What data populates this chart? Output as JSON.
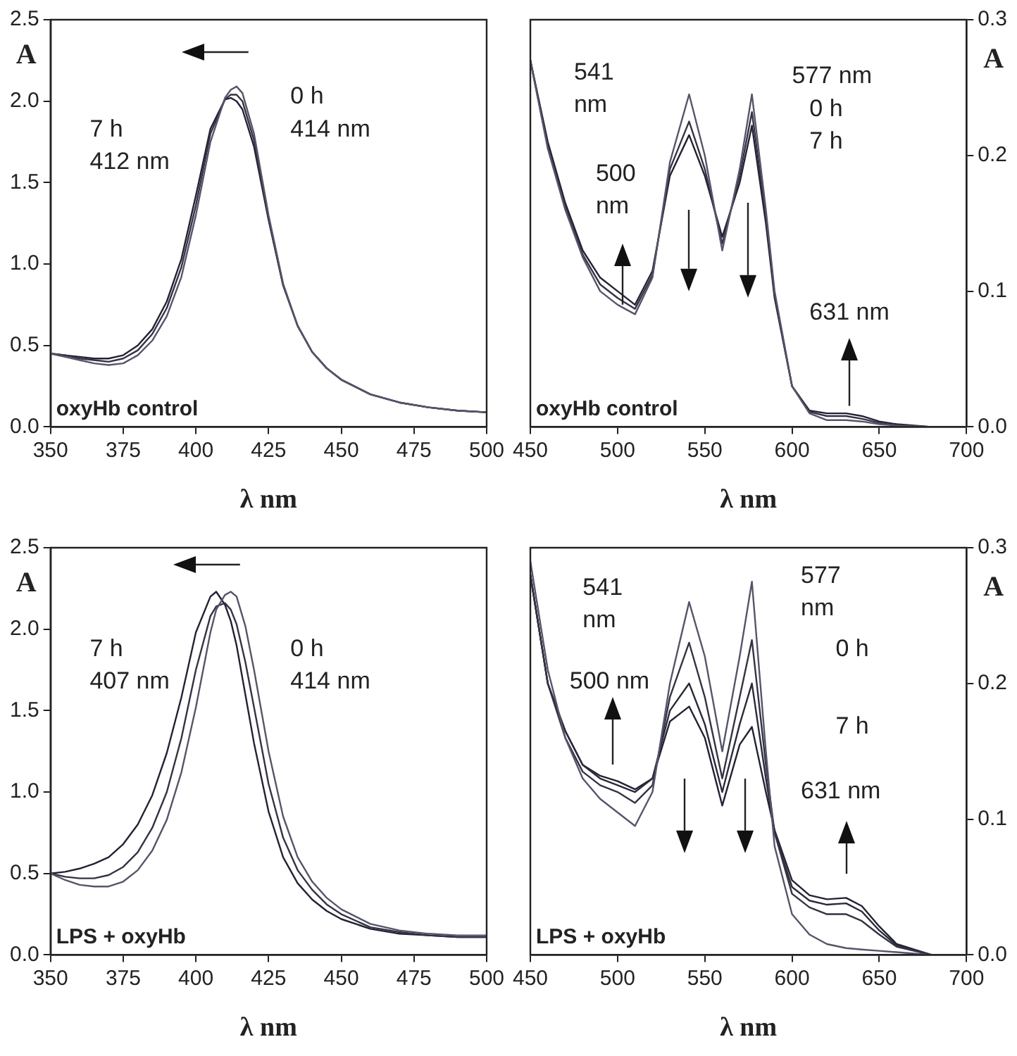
{
  "chart_data": [
    {
      "type": "line",
      "xlabel": "λ nm",
      "ylabel": "A",
      "xlim": [
        350,
        500
      ],
      "xticks": [
        350,
        375,
        400,
        425,
        450,
        475,
        500
      ],
      "ylim": [
        0,
        2.5
      ],
      "yticks": [
        {
          "value": 0,
          "label": "0.0"
        },
        0.5,
        {
          "value": 1,
          "label": "1.0"
        },
        1.5,
        {
          "value": 2,
          "label": "2.0"
        },
        2.5
      ],
      "x": [
        350,
        355,
        360,
        365,
        370,
        375,
        380,
        385,
        390,
        395,
        400,
        405,
        410,
        412,
        414,
        416,
        420,
        425,
        430,
        435,
        440,
        445,
        450,
        460,
        470,
        480,
        490,
        500
      ],
      "series": [
        {
          "color": "#55556a",
          "values": [
            0.45,
            0.43,
            0.41,
            0.39,
            0.38,
            0.39,
            0.44,
            0.53,
            0.68,
            0.92,
            1.3,
            1.75,
            2.02,
            2.07,
            2.09,
            2.05,
            1.8,
            1.3,
            0.88,
            0.62,
            0.46,
            0.36,
            0.29,
            0.2,
            0.15,
            0.12,
            0.1,
            0.09
          ]
        },
        {
          "color": "#333344",
          "values": [
            0.45,
            0.44,
            0.42,
            0.41,
            0.4,
            0.42,
            0.47,
            0.57,
            0.73,
            0.98,
            1.36,
            1.8,
            2.01,
            2.04,
            2.04,
            2.0,
            1.76,
            1.28,
            0.87,
            0.62,
            0.46,
            0.36,
            0.29,
            0.2,
            0.15,
            0.12,
            0.1,
            0.09
          ]
        },
        {
          "color": "#222233",
          "values": [
            0.45,
            0.44,
            0.43,
            0.42,
            0.42,
            0.44,
            0.5,
            0.6,
            0.77,
            1.03,
            1.42,
            1.83,
            2.01,
            2.02,
            2.0,
            1.95,
            1.72,
            1.27,
            0.87,
            0.62,
            0.46,
            0.36,
            0.29,
            0.2,
            0.15,
            0.12,
            0.1,
            0.09
          ]
        }
      ],
      "annotations": [
        "oxyHb control",
        "0 h",
        "414 nm",
        "7 h",
        "412 nm"
      ]
    },
    {
      "type": "line",
      "xlabel": "λ nm",
      "y2label": "A",
      "xlim": [
        450,
        700
      ],
      "xticks": [
        450,
        500,
        550,
        600,
        650,
        700
      ],
      "y2lim": [
        0,
        0.3
      ],
      "y2ticks": [
        {
          "value": 0,
          "label": "0.0"
        },
        0.1,
        0.2,
        0.3
      ],
      "x": [
        450,
        460,
        470,
        480,
        490,
        500,
        510,
        520,
        530,
        541,
        550,
        560,
        570,
        577,
        585,
        590,
        600,
        610,
        620,
        631,
        640,
        650,
        660,
        680,
        700
      ],
      "series": [
        {
          "axis": "y2",
          "color": "#55556a",
          "values": [
            0.27,
            0.205,
            0.16,
            0.125,
            0.1,
            0.09,
            0.083,
            0.11,
            0.195,
            0.245,
            0.2,
            0.13,
            0.19,
            0.245,
            0.16,
            0.1,
            0.03,
            0.01,
            0.005,
            0.005,
            0.004,
            0.002,
            0.001,
            0,
            0
          ]
        },
        {
          "axis": "y2",
          "color": "#333344",
          "values": [
            0.27,
            0.207,
            0.162,
            0.127,
            0.105,
            0.095,
            0.087,
            0.112,
            0.19,
            0.225,
            0.19,
            0.135,
            0.185,
            0.232,
            0.155,
            0.097,
            0.03,
            0.011,
            0.008,
            0.008,
            0.006,
            0.003,
            0.001,
            0,
            0
          ]
        },
        {
          "axis": "y2",
          "color": "#222233",
          "values": [
            0.27,
            0.21,
            0.165,
            0.13,
            0.11,
            0.1,
            0.09,
            0.115,
            0.185,
            0.215,
            0.185,
            0.14,
            0.18,
            0.222,
            0.15,
            0.095,
            0.03,
            0.012,
            0.01,
            0.01,
            0.008,
            0.004,
            0.002,
            0,
            0
          ]
        }
      ],
      "annotations": [
        "oxyHb control",
        "541",
        "nm",
        "577 nm",
        "0 h",
        "7 h",
        "500",
        "nm",
        "631 nm"
      ]
    },
    {
      "type": "line",
      "xlabel": "λ nm",
      "ylabel": "A",
      "xlim": [
        350,
        500
      ],
      "xticks": [
        350,
        375,
        400,
        425,
        450,
        475,
        500
      ],
      "ylim": [
        0,
        2.5
      ],
      "yticks": [
        {
          "value": 0,
          "label": "0.0"
        },
        0.5,
        {
          "value": 1,
          "label": "1.0"
        },
        1.5,
        {
          "value": 2,
          "label": "2.0"
        },
        2.5
      ],
      "x": [
        350,
        355,
        360,
        365,
        370,
        375,
        380,
        385,
        390,
        395,
        400,
        405,
        407,
        410,
        412,
        414,
        417,
        420,
        425,
        430,
        435,
        440,
        445,
        450,
        460,
        470,
        480,
        490,
        500
      ],
      "series": [
        {
          "color": "#55556a",
          "values": [
            0.5,
            0.46,
            0.43,
            0.42,
            0.42,
            0.45,
            0.52,
            0.64,
            0.83,
            1.12,
            1.52,
            1.98,
            2.12,
            2.21,
            2.23,
            2.2,
            2.02,
            1.75,
            1.25,
            0.85,
            0.6,
            0.45,
            0.35,
            0.28,
            0.19,
            0.15,
            0.13,
            0.12,
            0.12
          ]
        },
        {
          "color": "#333344",
          "values": [
            0.5,
            0.48,
            0.47,
            0.47,
            0.49,
            0.54,
            0.63,
            0.78,
            1.0,
            1.33,
            1.75,
            2.08,
            2.14,
            2.16,
            2.12,
            2.03,
            1.8,
            1.52,
            1.05,
            0.72,
            0.52,
            0.4,
            0.31,
            0.25,
            0.17,
            0.14,
            0.12,
            0.11,
            0.11
          ]
        },
        {
          "color": "#222233",
          "values": [
            0.5,
            0.51,
            0.53,
            0.56,
            0.6,
            0.68,
            0.8,
            0.98,
            1.24,
            1.58,
            1.98,
            2.2,
            2.23,
            2.15,
            2.05,
            1.9,
            1.6,
            1.3,
            0.88,
            0.6,
            0.44,
            0.34,
            0.27,
            0.22,
            0.16,
            0.13,
            0.12,
            0.11,
            0.11
          ]
        }
      ],
      "annotations": [
        "LPS + oxyHb",
        "7 h",
        "407 nm",
        "0 h",
        "414 nm"
      ]
    },
    {
      "type": "line",
      "xlabel": "λ nm",
      "y2label": "A",
      "xlim": [
        450,
        700
      ],
      "xticks": [
        450,
        500,
        550,
        600,
        650,
        700
      ],
      "y2lim": [
        0,
        0.3
      ],
      "y2ticks": [
        {
          "value": 0,
          "label": "0.0"
        },
        0.1,
        0.2,
        0.3
      ],
      "x": [
        450,
        460,
        470,
        480,
        490,
        500,
        510,
        520,
        530,
        541,
        550,
        560,
        570,
        577,
        585,
        590,
        600,
        610,
        620,
        631,
        640,
        650,
        660,
        680,
        700
      ],
      "series": [
        {
          "axis": "y2",
          "color": "#55556a",
          "values": [
            0.29,
            0.21,
            0.16,
            0.13,
            0.115,
            0.105,
            0.095,
            0.12,
            0.2,
            0.26,
            0.22,
            0.15,
            0.22,
            0.275,
            0.15,
            0.08,
            0.03,
            0.015,
            0.008,
            0.005,
            0.004,
            0.003,
            0.002,
            0,
            0
          ]
        },
        {
          "axis": "y2",
          "color": "#333344",
          "values": [
            0.28,
            0.2,
            0.16,
            0.135,
            0.125,
            0.12,
            0.112,
            0.125,
            0.19,
            0.23,
            0.19,
            0.13,
            0.19,
            0.232,
            0.14,
            0.09,
            0.045,
            0.035,
            0.03,
            0.03,
            0.025,
            0.015,
            0.006,
            0,
            0
          ]
        },
        {
          "axis": "y2",
          "color": "#2a2a3a",
          "values": [
            0.28,
            0.2,
            0.165,
            0.14,
            0.13,
            0.125,
            0.12,
            0.13,
            0.18,
            0.2,
            0.17,
            0.12,
            0.17,
            0.2,
            0.13,
            0.09,
            0.05,
            0.04,
            0.037,
            0.038,
            0.032,
            0.018,
            0.007,
            0,
            0
          ]
        },
        {
          "axis": "y2",
          "color": "#222233",
          "values": [
            0.28,
            0.2,
            0.165,
            0.14,
            0.132,
            0.128,
            0.122,
            0.13,
            0.172,
            0.183,
            0.16,
            0.11,
            0.155,
            0.168,
            0.12,
            0.092,
            0.055,
            0.044,
            0.041,
            0.042,
            0.036,
            0.021,
            0.008,
            0,
            0
          ]
        }
      ],
      "annotations": [
        "LPS + oxyHb",
        "541",
        "nm",
        "577",
        "nm",
        "0 h",
        "7 h",
        "500 nm",
        "631 nm"
      ]
    }
  ]
}
